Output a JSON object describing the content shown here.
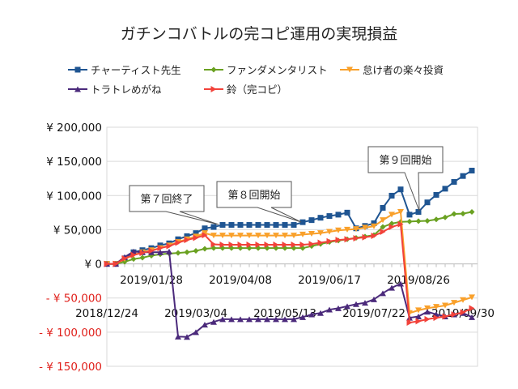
{
  "chart_data": {
    "type": "line",
    "title": "ガチンコバトルの完コピ運用の実現損益",
    "xlabel": "",
    "ylabel": "",
    "ylim": [
      -150000,
      200000
    ],
    "y_ticks": [
      200000,
      150000,
      100000,
      50000,
      0,
      -50000,
      -100000,
      -150000
    ],
    "y_tick_labels": [
      "¥ 200,000",
      "¥ 150,000",
      "¥ 100,000",
      "¥ 50,000",
      "¥ 0",
      "- ¥ 50,000",
      "- ¥ 100,000",
      "- ¥ 150,000"
    ],
    "negative_label_color": "#E0201B",
    "grid": true,
    "legend_position": "top",
    "x": [
      "2018/12/24",
      "2018/12/31",
      "2019/01/07",
      "2019/01/14",
      "2019/01/21",
      "2019/01/28",
      "2019/02/04",
      "2019/02/11",
      "2019/02/18",
      "2019/02/25",
      "2019/03/04",
      "2019/03/11",
      "2019/03/18",
      "2019/03/25",
      "2019/04/01",
      "2019/04/08",
      "2019/04/15",
      "2019/04/22",
      "2019/04/29",
      "2019/05/06",
      "2019/05/13",
      "2019/05/20",
      "2019/05/27",
      "2019/06/03",
      "2019/06/10",
      "2019/06/17",
      "2019/06/24",
      "2019/07/01",
      "2019/07/08",
      "2019/07/15",
      "2019/07/22",
      "2019/07/29",
      "2019/08/05",
      "2019/08/12",
      "2019/08/19",
      "2019/08/26",
      "2019/09/02",
      "2019/09/09",
      "2019/09/16",
      "2019/09/23",
      "2019/09/30",
      "2019/10/07"
    ],
    "x_tick_labels_upper": [
      "2019/01/28",
      "2019/04/08",
      "2019/06/17",
      "2019/08/26"
    ],
    "x_tick_labels_lower": [
      "2018/12/24",
      "2019/03/04",
      "2019/05/13",
      "2019/07/22",
      "2019/09/30"
    ],
    "series": [
      {
        "name": "チャーティスト先生",
        "color": "#1F5592",
        "marker": "square",
        "values": [
          0,
          0,
          8000,
          17000,
          20000,
          23000,
          27000,
          30000,
          36000,
          40500,
          45000,
          52000,
          54000,
          57000,
          57000,
          57000,
          57000,
          57000,
          57000,
          57000,
          57000,
          57000,
          61000,
          64000,
          67500,
          70000,
          72000,
          75000,
          52000,
          55500,
          59500,
          82000,
          99800,
          109000,
          72000,
          76000,
          90000,
          101000,
          110000,
          120000,
          128600,
          136500
        ]
      },
      {
        "name": "ファンダメンタリスト",
        "color": "#6AA121",
        "marker": "diamond",
        "values": [
          0,
          0,
          3000,
          7000,
          9000,
          12000,
          14000,
          15000,
          16000,
          17000,
          19000,
          22000,
          23000,
          23000,
          23000,
          23000,
          23000,
          23000,
          23000,
          23000,
          23000,
          23000,
          23000,
          26000,
          29000,
          32000,
          34000,
          36000,
          38000,
          40000,
          42000,
          54000,
          59000,
          61500,
          62000,
          62500,
          63000,
          65000,
          68000,
          73000,
          73500,
          76000
        ]
      },
      {
        "name": "怠け者の楽々投資",
        "color": "#F9A02A",
        "marker": "triangle-down",
        "values": [
          0,
          0,
          7000,
          13000,
          17000,
          20000,
          23000,
          27000,
          32000,
          36000,
          40000,
          45000,
          41500,
          41500,
          41500,
          41500,
          41500,
          41500,
          41500,
          41500,
          41500,
          41500,
          43000,
          44000,
          45000,
          47000,
          49000,
          50000,
          51000,
          53000,
          55000,
          64000,
          72000,
          76000,
          -72000,
          -68000,
          -65000,
          -63000,
          -61000,
          -57000,
          -53000,
          -49000
        ]
      },
      {
        "name": "トラトレめがね",
        "color": "#4B2A7B",
        "marker": "triangle-up",
        "values": [
          0,
          0,
          10000,
          18000,
          17000,
          17000,
          17000,
          18000,
          -106500,
          -107000,
          -100000,
          -89000,
          -85000,
          -81000,
          -81000,
          -81000,
          -81000,
          -81000,
          -81000,
          -81000,
          -81000,
          -81000,
          -78000,
          -74000,
          -72000,
          -67000,
          -65000,
          -62000,
          -59000,
          -57000,
          -52000,
          -43000,
          -35000,
          -29000,
          -79000,
          -77000,
          -70000,
          -74000,
          -77000,
          -74000,
          -72000,
          -78000
        ]
      },
      {
        "name": "鈴（完コピ）",
        "color": "#F2423A",
        "marker": "triangle-right",
        "values": [
          0,
          0,
          8000,
          13000,
          16000,
          19000,
          23000,
          26000,
          31000,
          35000,
          38000,
          42000,
          28500,
          28000,
          28000,
          28000,
          28000,
          28000,
          28000,
          28000,
          28000,
          28000,
          28000,
          29000,
          31000,
          33000,
          35000,
          36000,
          37500,
          39000,
          41000,
          47000,
          54000,
          58000,
          -86000,
          -84000,
          -81000,
          -79000,
          -77000,
          -74000,
          -71000,
          -65000
        ]
      }
    ],
    "annotations": [
      {
        "text": "第７回終了",
        "at": "2019/03/25"
      },
      {
        "text": "第８回開始",
        "at": "2019/05/27"
      },
      {
        "text": "第９回開始",
        "at": "2019/08/19"
      }
    ]
  }
}
